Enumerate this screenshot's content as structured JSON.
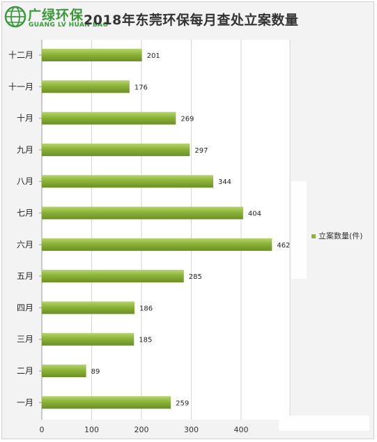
{
  "logo": {
    "name_cn": "广绿环保",
    "name_en": "GUANG LV HUAN BAO"
  },
  "chart_data": {
    "type": "bar",
    "orientation": "horizontal",
    "title": "2018年东莞环保每月查处立案数量",
    "categories": [
      "十二月",
      "十一月",
      "十月",
      "九月",
      "八月",
      "七月",
      "六月",
      "五月",
      "四月",
      "三月",
      "二月",
      "一月"
    ],
    "series": [
      {
        "name": "立案数量(件)",
        "values": [
          201,
          176,
          269,
          297,
          344,
          404,
          462,
          285,
          186,
          185,
          89,
          259
        ]
      }
    ],
    "xlim": [
      0,
      500
    ],
    "xticks": [
      0,
      100,
      200,
      300,
      400
    ],
    "grid": true,
    "legend_position": "right",
    "colors": {
      "bar": "#8cb33a",
      "bar_light": "#b5d46a",
      "bar_dark": "#6b8f24",
      "grid": "#d6d6d6"
    }
  }
}
